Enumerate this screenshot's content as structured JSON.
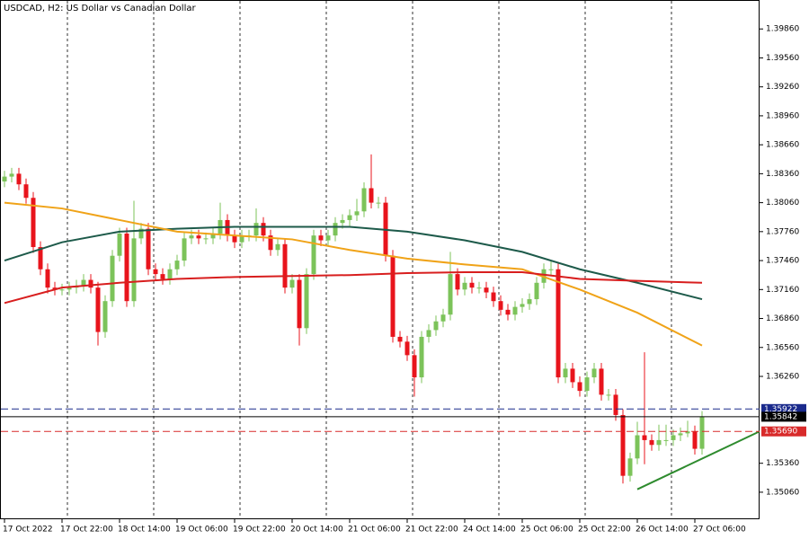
{
  "chart_data": {
    "type": "candlestick",
    "title": "USDCAD, H2:  US Dollar vs Canadian Dollar",
    "up_color": "#7cc35a",
    "down_color": "#e8141c",
    "categories": [
      "17 Oct 2022",
      null,
      null,
      null,
      null,
      null,
      null,
      null,
      "17 Oct 22:00",
      null,
      null,
      null,
      null,
      null,
      null,
      null,
      "18 Oct 14:00",
      null,
      null,
      null,
      null,
      null,
      null,
      null,
      "19 Oct 06:00",
      null,
      null,
      null,
      null,
      null,
      null,
      null,
      "19 Oct 22:00",
      null,
      null,
      null,
      null,
      null,
      null,
      null,
      "20 Oct 14:00",
      null,
      null,
      null,
      null,
      null,
      null,
      null,
      "21 Oct 06:00",
      null,
      null,
      null,
      null,
      null,
      null,
      null,
      "21 Oct 22:00",
      null,
      null,
      null,
      null,
      null,
      null,
      null,
      "24 Oct 14:00",
      null,
      null,
      null,
      null,
      null,
      null,
      null,
      "25 Oct 06:00",
      null,
      null,
      null,
      null,
      null,
      null,
      null,
      "25 Oct 22:00",
      null,
      null,
      null,
      null,
      null,
      null,
      null,
      "26 Oct 14:00",
      null,
      null,
      null,
      null,
      null,
      null,
      null,
      "27 Oct 06:00",
      null
    ],
    "open": [
      1.3828,
      1.3833,
      1.3836,
      1.3825,
      1.3811,
      1.376,
      1.3737,
      1.3718,
      1.3716,
      1.3716,
      1.3718,
      1.372,
      1.3726,
      1.3718,
      1.3672,
      1.3704,
      1.3751,
      1.3774,
      1.3704,
      1.3769,
      1.3779,
      1.3737,
      1.3732,
      1.3727,
      1.3737,
      1.3746,
      1.3769,
      1.3772,
      1.3769,
      1.3769,
      1.3774,
      1.3788,
      1.3772,
      1.3765,
      1.3772,
      1.3772,
      1.3785,
      1.3772,
      1.3757,
      1.3763,
      1.3718,
      1.3726,
      1.3676,
      1.3732,
      1.3772,
      1.3767,
      1.3772,
      1.3785,
      1.3788,
      1.3793,
      1.3797,
      1.3821,
      1.3806,
      1.3806,
      1.3751,
      1.3667,
      1.3662,
      1.3648,
      1.3625,
      1.3667,
      1.3674,
      1.3683,
      1.369,
      1.3732,
      1.3716,
      1.3723,
      1.3718,
      1.3718,
      1.3713,
      1.3704,
      1.3695,
      1.369,
      1.3698,
      1.3701,
      1.3706,
      1.3723,
      1.3737,
      1.3737,
      1.3625,
      1.3634,
      1.362,
      1.3611,
      1.3625,
      1.3634,
      1.3607,
      1.3607,
      1.3586,
      1.3523,
      1.3541,
      1.3565,
      1.356,
      1.3555,
      1.356,
      1.356,
      1.3565,
      1.3567,
      1.3569,
      1.3551
    ],
    "high": [
      1.3839,
      1.3842,
      1.3842,
      1.3831,
      1.3817,
      1.3766,
      1.3743,
      1.3724,
      1.3722,
      1.3724,
      1.3726,
      1.3732,
      1.3732,
      1.3724,
      1.371,
      1.3757,
      1.378,
      1.378,
      1.3808,
      1.3785,
      1.3785,
      1.3743,
      1.3738,
      1.3743,
      1.3752,
      1.3775,
      1.3778,
      1.3778,
      1.3775,
      1.378,
      1.3806,
      1.3794,
      1.3778,
      1.3778,
      1.3778,
      1.38,
      1.3791,
      1.3778,
      1.3769,
      1.3769,
      1.3732,
      1.3732,
      1.3738,
      1.3778,
      1.3778,
      1.3778,
      1.3791,
      1.3794,
      1.3799,
      1.381,
      1.3827,
      1.3856,
      1.3812,
      1.3812,
      1.3757,
      1.3673,
      1.3668,
      1.3654,
      1.3673,
      1.368,
      1.3689,
      1.3696,
      1.3755,
      1.3738,
      1.3729,
      1.3729,
      1.3724,
      1.3724,
      1.3719,
      1.371,
      1.3701,
      1.3704,
      1.3707,
      1.3712,
      1.3729,
      1.3743,
      1.3746,
      1.3743,
      1.364,
      1.364,
      1.3626,
      1.3631,
      1.364,
      1.364,
      1.3613,
      1.3613,
      1.3592,
      1.3547,
      1.3579,
      1.3651,
      1.3566,
      1.3576,
      1.3576,
      1.3571,
      1.3573,
      1.358,
      1.3575,
      1.359
    ],
    "low": [
      1.3822,
      1.3827,
      1.3819,
      1.3805,
      1.3754,
      1.3731,
      1.3712,
      1.371,
      1.371,
      1.371,
      1.3712,
      1.3714,
      1.3712,
      1.3658,
      1.3666,
      1.3698,
      1.3745,
      1.3698,
      1.3698,
      1.3763,
      1.3731,
      1.3726,
      1.3721,
      1.3721,
      1.3731,
      1.374,
      1.3763,
      1.3763,
      1.3763,
      1.3763,
      1.3768,
      1.3766,
      1.3759,
      1.3759,
      1.3766,
      1.3766,
      1.3766,
      1.3751,
      1.3751,
      1.3712,
      1.3712,
      1.3658,
      1.367,
      1.3726,
      1.3761,
      1.3761,
      1.3766,
      1.3779,
      1.3782,
      1.3787,
      1.3791,
      1.38,
      1.38,
      1.3745,
      1.3661,
      1.3656,
      1.3642,
      1.3605,
      1.3619,
      1.3661,
      1.3668,
      1.3677,
      1.3684,
      1.371,
      1.371,
      1.3712,
      1.3712,
      1.3707,
      1.3698,
      1.3689,
      1.3684,
      1.3684,
      1.3692,
      1.3695,
      1.37,
      1.3717,
      1.3731,
      1.3619,
      1.3619,
      1.3614,
      1.3605,
      1.3605,
      1.3619,
      1.3601,
      1.3601,
      1.358,
      1.3515,
      1.3517,
      1.3535,
      1.3535,
      1.3549,
      1.3549,
      1.3554,
      1.3554,
      1.3559,
      1.3563,
      1.3545,
      1.3545
    ],
    "close": [
      1.3833,
      1.3836,
      1.3825,
      1.3811,
      1.376,
      1.3737,
      1.3718,
      1.3716,
      1.3716,
      1.3718,
      1.372,
      1.3726,
      1.3718,
      1.3672,
      1.3704,
      1.3751,
      1.3774,
      1.3704,
      1.3769,
      1.3779,
      1.3737,
      1.3732,
      1.3727,
      1.3737,
      1.3746,
      1.3769,
      1.3772,
      1.3769,
      1.3769,
      1.3774,
      1.3788,
      1.3772,
      1.3765,
      1.3772,
      1.3772,
      1.3785,
      1.3772,
      1.3757,
      1.3763,
      1.3718,
      1.3726,
      1.3676,
      1.3732,
      1.3772,
      1.3767,
      1.3772,
      1.3785,
      1.3788,
      1.3793,
      1.3797,
      1.3821,
      1.3806,
      1.3806,
      1.3751,
      1.3667,
      1.3662,
      1.3648,
      1.3625,
      1.3667,
      1.3674,
      1.3683,
      1.369,
      1.3732,
      1.3716,
      1.3723,
      1.3718,
      1.3718,
      1.3713,
      1.3704,
      1.3695,
      1.369,
      1.3698,
      1.3701,
      1.3706,
      1.3723,
      1.3737,
      1.3737,
      1.3625,
      1.3634,
      1.362,
      1.3611,
      1.3625,
      1.3634,
      1.3607,
      1.3607,
      1.3586,
      1.3523,
      1.3541,
      1.3565,
      1.356,
      1.3555,
      1.356,
      1.356,
      1.3565,
      1.3567,
      1.3569,
      1.3551,
      1.3584
    ],
    "lines": [
      {
        "color": "#1d5a4a",
        "x": [
          0,
          8,
          16,
          24,
          32,
          40,
          48,
          56,
          64,
          72,
          80,
          88,
          97
        ],
        "values": [
          1.3746,
          1.3765,
          1.3776,
          1.3779,
          1.3781,
          1.3781,
          1.3781,
          1.3776,
          1.3767,
          1.3755,
          1.3737,
          1.3723,
          1.3706
        ]
      },
      {
        "color": "#f0a318",
        "x": [
          0,
          8,
          16,
          24,
          32,
          40,
          48,
          56,
          64,
          72,
          80,
          88,
          97
        ],
        "values": [
          1.3806,
          1.38,
          1.3788,
          1.3776,
          1.3772,
          1.3768,
          1.3757,
          1.3748,
          1.3742,
          1.3737,
          1.3716,
          1.3692,
          1.3658
        ]
      },
      {
        "color": "#d81e1e",
        "x": [
          0,
          8,
          16,
          24,
          32,
          40,
          48,
          56,
          64,
          72,
          80,
          88,
          97
        ],
        "values": [
          1.3702,
          1.3718,
          1.3723,
          1.3727,
          1.3729,
          1.373,
          1.3731,
          1.3733,
          1.3734,
          1.3734,
          1.3727,
          1.3725,
          1.3723
        ]
      }
    ],
    "trendline": {
      "color": "#2e8b2e",
      "x": [
        88,
        105
      ],
      "values": [
        1.3509,
        1.3569
      ]
    },
    "levels": [
      {
        "value": 1.35922,
        "label": "1.35922",
        "color": "#1a2a8c",
        "style": "dashed"
      },
      {
        "value": 1.35842,
        "label": "1.35842",
        "color": "#000000",
        "style": "solid"
      },
      {
        "value": 1.3569,
        "label": "1.35690",
        "color": "#d82a2a",
        "style": "dashed"
      }
    ],
    "ylim": [
      1.3478,
      1.4016
    ],
    "yticks": [
      {
        "value": 1.3986,
        "label": "1.39860"
      },
      {
        "value": 1.3956,
        "label": "1.39560"
      },
      {
        "value": 1.3926,
        "label": "1.39260"
      },
      {
        "value": 1.3896,
        "label": "1.38960"
      },
      {
        "value": 1.3866,
        "label": "1.38660"
      },
      {
        "value": 1.3836,
        "label": "1.38360"
      },
      {
        "value": 1.3806,
        "label": "1.38060"
      },
      {
        "value": 1.3776,
        "label": "1.37760"
      },
      {
        "value": 1.3746,
        "label": "1.37460"
      },
      {
        "value": 1.3716,
        "label": "1.37160"
      },
      {
        "value": 1.3686,
        "label": "1.36860"
      },
      {
        "value": 1.3656,
        "label": "1.36560"
      },
      {
        "value": 1.3626,
        "label": "1.36260"
      },
      {
        "value": 1.3536,
        "label": "1.35360"
      },
      {
        "value": 1.3506,
        "label": "1.35060"
      }
    ]
  }
}
